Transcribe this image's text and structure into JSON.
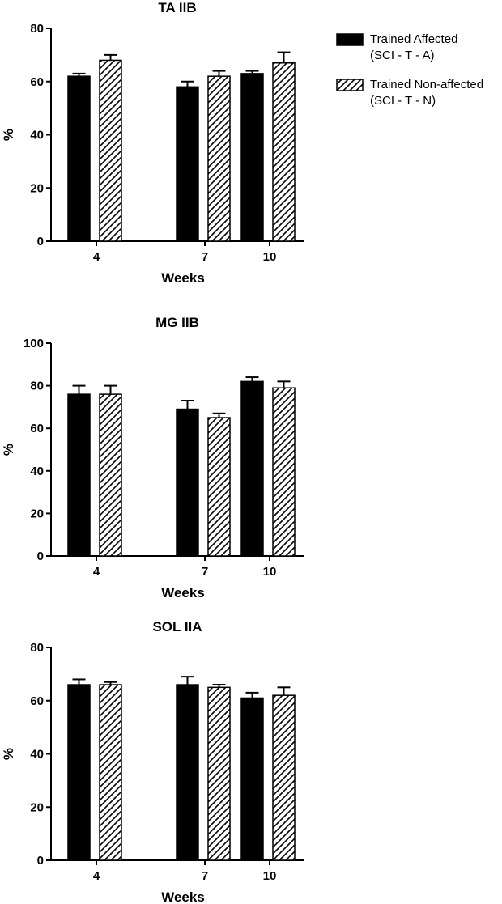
{
  "legend": {
    "colors": {
      "solid": "#000000",
      "hatched": "#ffffff"
    },
    "items": [
      {
        "series": "Trained Affected",
        "line1": "Trained Affected",
        "line2": "(SCI - T - A)",
        "pattern": "solid"
      },
      {
        "series": "Trained Non-affected",
        "line1": "Trained Non-affected",
        "line2": "(SCI - T - N)",
        "pattern": "hatched"
      }
    ]
  },
  "chart_data": [
    {
      "type": "bar",
      "title": "TA IIB",
      "xlabel": "Weeks",
      "ylabel": "%",
      "categories": [
        "4",
        "7",
        "10"
      ],
      "ylim": [
        0,
        80
      ],
      "yticks": [
        "0",
        "20",
        "40",
        "60",
        "80"
      ],
      "grid": false,
      "legend": "right",
      "series": [
        {
          "name": "Trained Affected",
          "values": [
            62,
            58,
            63
          ],
          "errors": [
            1,
            2,
            1
          ]
        },
        {
          "name": "Trained Non-affected",
          "values": [
            68,
            62,
            67
          ],
          "errors": [
            2,
            2,
            4
          ]
        }
      ]
    },
    {
      "type": "bar",
      "title": "MG IIB",
      "xlabel": "Weeks",
      "ylabel": "%",
      "categories": [
        "4",
        "7",
        "10"
      ],
      "ylim": [
        0,
        100
      ],
      "yticks": [
        "0",
        "20",
        "40",
        "60",
        "80",
        "100"
      ],
      "grid": false,
      "series": [
        {
          "name": "Trained Affected",
          "values": [
            76,
            69,
            82
          ],
          "errors": [
            4,
            4,
            2
          ]
        },
        {
          "name": "Trained Non-affected",
          "values": [
            76,
            65,
            79
          ],
          "errors": [
            4,
            2,
            3
          ]
        }
      ]
    },
    {
      "type": "bar",
      "title": "SOL IIA",
      "xlabel": "Weeks",
      "ylabel": "%",
      "categories": [
        "4",
        "7",
        "10"
      ],
      "ylim": [
        0,
        80
      ],
      "yticks": [
        "0",
        "20",
        "40",
        "60",
        "80"
      ],
      "grid": false,
      "series": [
        {
          "name": "Trained Affected",
          "values": [
            66,
            66,
            61
          ],
          "errors": [
            2,
            3,
            2
          ]
        },
        {
          "name": "Trained Non-affected",
          "values": [
            66,
            65,
            62
          ],
          "errors": [
            1,
            1,
            3
          ]
        }
      ]
    }
  ]
}
